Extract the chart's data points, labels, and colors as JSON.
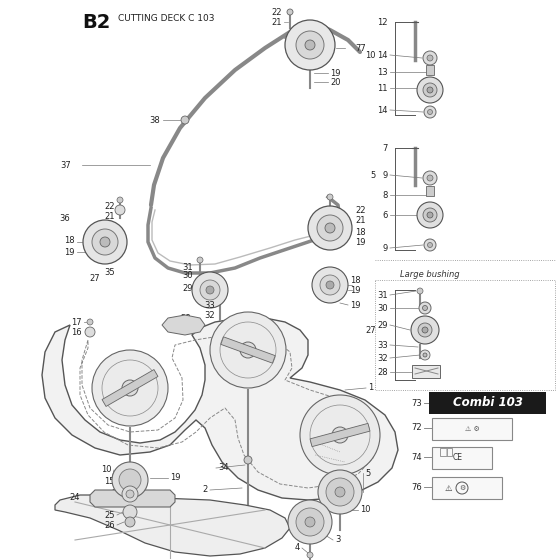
{
  "bg_color": "#ffffff",
  "fig_width": 5.6,
  "fig_height": 5.6,
  "dpi": 100,
  "title": "B2",
  "subtitle": "CUTTING DECK C 103",
  "combi_text": "Combi 103",
  "large_bushing": "Large bushing"
}
